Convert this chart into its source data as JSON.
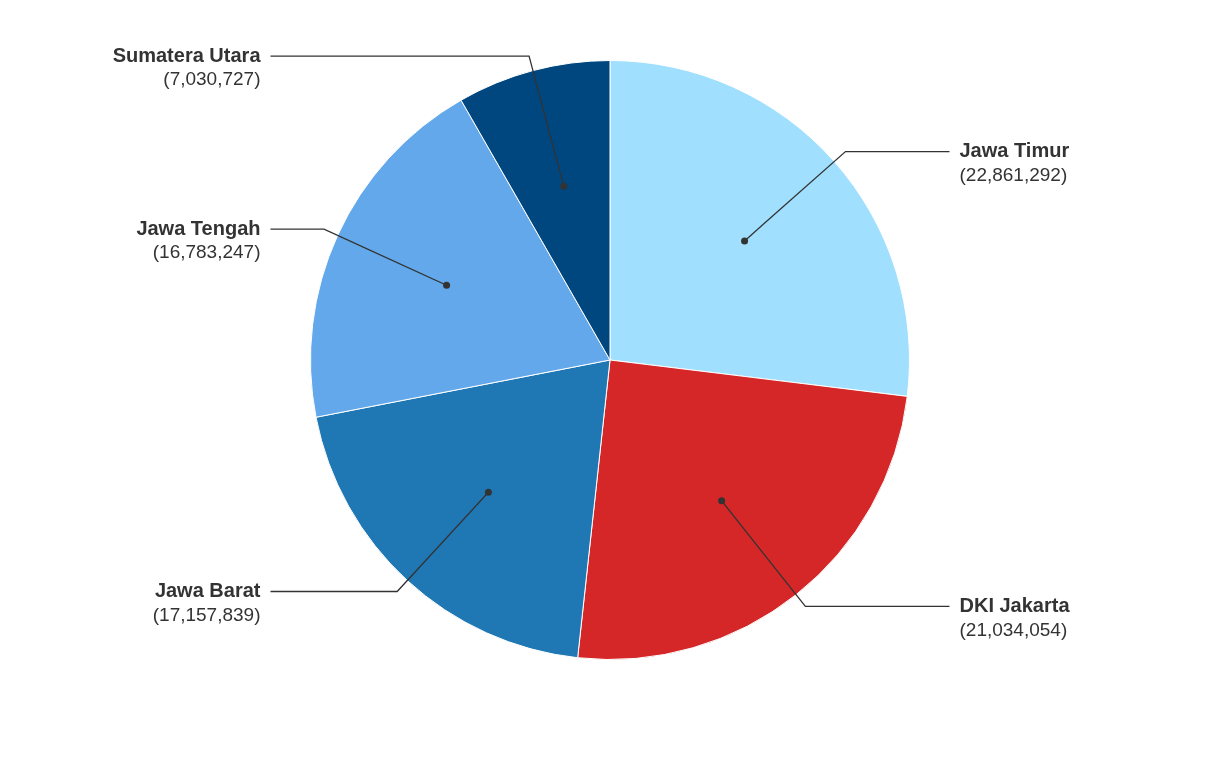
{
  "chart_data": {
    "type": "pie",
    "categories": [
      "Jawa Timur",
      "DKI Jakarta",
      "Jawa Barat",
      "Jawa Tengah",
      "Sumatera Utara"
    ],
    "values": [
      22861292,
      21034054,
      17157839,
      16783247,
      7030727
    ],
    "value_labels": [
      "(22,861,292)",
      "(21,034,054)",
      "(17,157,839)",
      "(16,783,247)",
      "(7,030,727)"
    ],
    "colors": [
      "#a0dffe",
      "#d62728",
      "#1f77b4",
      "#63a8ea",
      "#00467f"
    ],
    "legend": false
  }
}
